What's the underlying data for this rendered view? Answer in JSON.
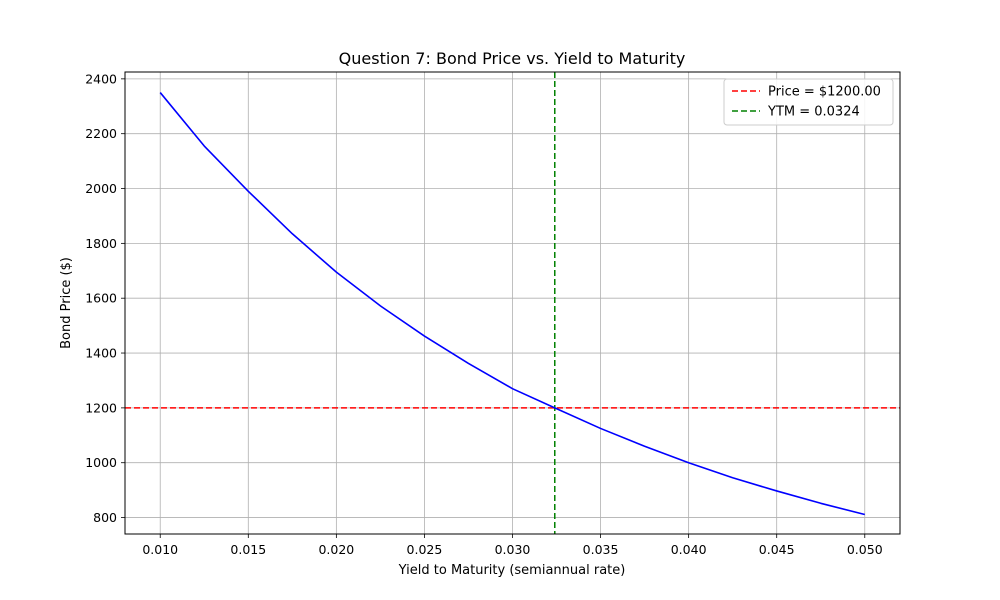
{
  "chart_data": {
    "type": "line",
    "title": "Question 7: Bond Price vs. Yield to Maturity",
    "xlabel": "Yield to Maturity (semiannual rate)",
    "ylabel": "Bond Price ($)",
    "xlim": [
      0.008,
      0.052
    ],
    "ylim": [
      740,
      2425
    ],
    "xticks": [
      0.01,
      0.015,
      0.02,
      0.025,
      0.03,
      0.035,
      0.04,
      0.045,
      0.05
    ],
    "xtick_labels": [
      "0.010",
      "0.015",
      "0.020",
      "0.025",
      "0.030",
      "0.035",
      "0.040",
      "0.045",
      "0.050"
    ],
    "yticks": [
      800,
      1000,
      1200,
      1400,
      1600,
      1800,
      2000,
      2200,
      2400
    ],
    "ytick_labels": [
      "800",
      "1000",
      "1200",
      "1400",
      "1600",
      "1800",
      "2000",
      "2200",
      "2400"
    ],
    "grid": true,
    "legend_position": "top-right",
    "series": [
      {
        "kind": "curve",
        "color": "#0000ff",
        "x": [
          0.01,
          0.0125,
          0.015,
          0.0175,
          0.02,
          0.0225,
          0.025,
          0.0275,
          0.03,
          0.0324,
          0.035,
          0.0375,
          0.04,
          0.0425,
          0.045,
          0.0475,
          0.05
        ],
        "y": [
          2350,
          2155,
          1990,
          1835,
          1695,
          1572,
          1462,
          1362,
          1270,
          1200,
          1125,
          1060,
          1000,
          945,
          897,
          852,
          811
        ]
      }
    ],
    "reference_lines": [
      {
        "orientation": "horizontal",
        "value": 1200,
        "color": "#ff0000",
        "label": "Price = $1200.00"
      },
      {
        "orientation": "vertical",
        "value": 0.0324,
        "color": "#008000",
        "label": "YTM = 0.0324"
      }
    ]
  }
}
